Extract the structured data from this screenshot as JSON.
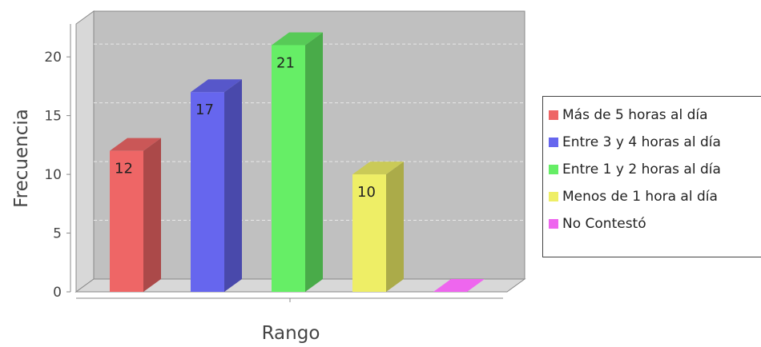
{
  "chart_data": {
    "type": "bar",
    "title": "",
    "xlabel": "Rango",
    "ylabel": "Frecuencia",
    "ylim": [
      0,
      22.8
    ],
    "yticks": [
      0,
      5,
      10,
      15,
      20
    ],
    "grid": true,
    "legend_position": "right",
    "series": [
      {
        "name": "Más de 5 horas al día",
        "value": 12,
        "color": "#ee6666"
      },
      {
        "name": "Entre 3 y 4 horas al día",
        "value": 17,
        "color": "#6666ee"
      },
      {
        "name": "Entre 1 y 2 horas al día",
        "value": 21,
        "color": "#66ee66"
      },
      {
        "name": "Menos de 1 hora al día",
        "value": 10,
        "color": "#eeee66"
      },
      {
        "name": "No Contestó",
        "value": 0,
        "color": "#ee66ee"
      }
    ]
  }
}
